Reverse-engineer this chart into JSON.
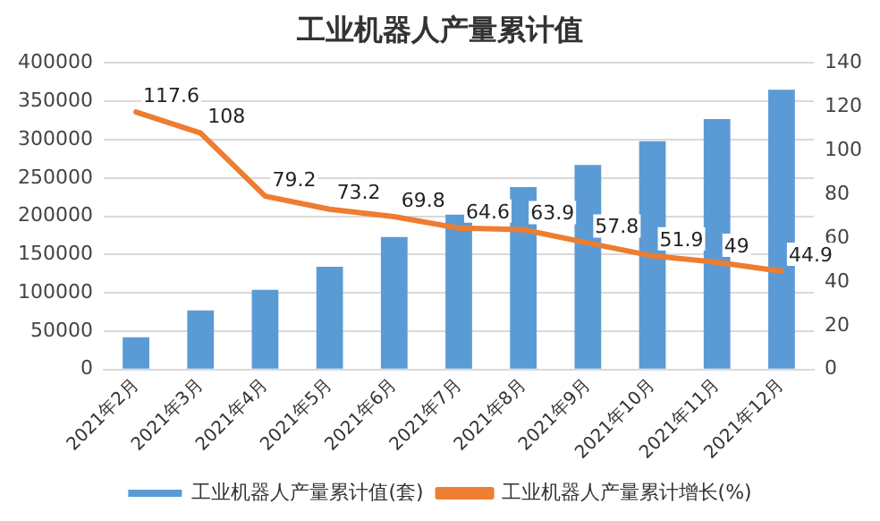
{
  "chart_data": {
    "type": "bar",
    "title": "工业机器人产量累计值",
    "categories": [
      "2021年2月",
      "2021年3月",
      "2021年4月",
      "2021年5月",
      "2021年6月",
      "2021年7月",
      "2021年8月",
      "2021年9月",
      "2021年10月",
      "2021年11月",
      "2021年12月"
    ],
    "series": [
      {
        "name": "工业机器人产量累计值(套)",
        "color": "#5b9bd5",
        "values": [
          42000,
          77000,
          104000,
          134000,
          173000,
          202000,
          238000,
          267000,
          298000,
          327000,
          365000
        ]
      },
      {
        "name": "工业机器人产量累计增长(%)",
        "type": "line",
        "axis": "y2",
        "color": "#ed7d31",
        "marker": "none",
        "values": [
          117.6,
          108,
          79.2,
          73.2,
          69.8,
          64.6,
          63.9,
          57.8,
          51.9,
          49,
          44.9
        ],
        "value_labels": [
          "117.6",
          "108",
          "79.2",
          "73.2",
          "69.8",
          "64.6",
          "63.9",
          "57.8",
          "51.9",
          "49",
          "44.9"
        ]
      }
    ],
    "ylim": [
      0,
      400000
    ],
    "yticks": [
      0,
      50000,
      100000,
      150000,
      200000,
      250000,
      300000,
      350000,
      400000
    ],
    "y2lim": [
      0,
      140
    ],
    "y2ticks": [
      0,
      20,
      40,
      60,
      80,
      100,
      120,
      140
    ],
    "grid": "y",
    "legend": "bottom"
  }
}
